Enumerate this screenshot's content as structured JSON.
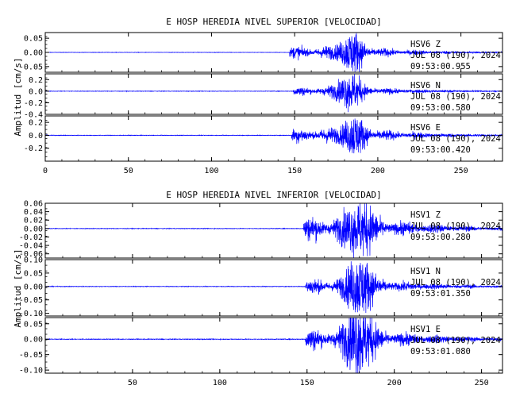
{
  "chart_data": [
    {
      "type": "line",
      "title": "E HOSP HEREDIA NIVEL SUPERIOR [VELOCIDAD]",
      "ylabel": "Amplitud [cm/s]",
      "xlabel": "",
      "xlim": [
        0,
        275
      ],
      "x_ticks": [
        "0",
        "50",
        "100",
        "150",
        "200",
        "250"
      ],
      "color": "#0000ff",
      "panels": [
        {
          "station": "HSV6   Z",
          "date": "JUL 08 (190), 2024",
          "time": "09:53:00.955",
          "ylim": [
            -0.07,
            0.07
          ],
          "y_ticks": [
            "0.05",
            "0.00",
            "-0.05"
          ],
          "signal": {
            "onset": 147,
            "peak_t": 184,
            "peak_amp": 0.055,
            "pre_amp": 0.016,
            "coda_amp": 0.008,
            "noise": 0.0006
          }
        },
        {
          "station": "HSV6   N",
          "date": "JUL 08 (190), 2024",
          "time": "09:53:00.580",
          "ylim": [
            -0.4,
            0.3
          ],
          "y_ticks": [
            "0.2",
            "0.0",
            "-0.2",
            "-0.4"
          ],
          "signal": {
            "onset": 149,
            "peak_t": 183,
            "peak_amp": 0.26,
            "pre_amp": 0.05,
            "coda_amp": 0.04,
            "noise": 0.004
          }
        },
        {
          "station": "HSV6   E",
          "date": "JUL 08 (190), 2024",
          "time": "09:53:00.420",
          "ylim": [
            -0.4,
            0.3
          ],
          "y_ticks": [
            "0.2",
            "0.0",
            "-0.2"
          ],
          "signal": {
            "onset": 148,
            "peak_t": 185,
            "peak_amp": 0.22,
            "pre_amp": 0.08,
            "coda_amp": 0.05,
            "noise": 0.004
          }
        }
      ]
    },
    {
      "type": "line",
      "title": "E HOSP HEREDIA NIVEL INFERIOR [VELOCIDAD]",
      "ylabel": "Amplitud [cm/s]",
      "xlabel": "",
      "xlim": [
        0,
        262
      ],
      "x_ticks": [
        "50",
        "100",
        "150",
        "200",
        "250"
      ],
      "color": "#0000ff",
      "panels": [
        {
          "station": "HSV1   Z",
          "date": "JUL 08 (190), 2024",
          "time": "09:53:00.280",
          "ylim": [
            -0.07,
            0.06
          ],
          "y_ticks": [
            "0.06",
            "0.04",
            "0.02",
            "0.00",
            "-0.02",
            "-0.04",
            "-0.06"
          ],
          "signal": {
            "onset": 148,
            "peak_t": 180,
            "peak_amp": 0.052,
            "pre_amp": 0.022,
            "coda_amp": 0.01,
            "noise": 0.0006
          }
        },
        {
          "station": "HSV1   N",
          "date": "JUL 08 (190), 2024",
          "time": "09:53:01.350",
          "ylim": [
            -0.11,
            0.1
          ],
          "y_ticks": [
            "0.10",
            "0.05",
            "0.00",
            "-0.05",
            "-0.10"
          ],
          "signal": {
            "onset": 149,
            "peak_t": 180,
            "peak_amp": 0.095,
            "pre_amp": 0.018,
            "coda_amp": 0.015,
            "noise": 0.001
          }
        },
        {
          "station": "HSV1   E",
          "date": "JUL 08 (190), 2024",
          "time": "09:53:01.080",
          "ylim": [
            -0.11,
            0.07
          ],
          "y_ticks": [
            "0.05",
            "0.00",
            "-0.05",
            "-0.10"
          ],
          "signal": {
            "onset": 149,
            "peak_t": 180,
            "peak_amp": 0.1,
            "pre_amp": 0.025,
            "coda_amp": 0.015,
            "noise": 0.001
          }
        }
      ]
    }
  ]
}
